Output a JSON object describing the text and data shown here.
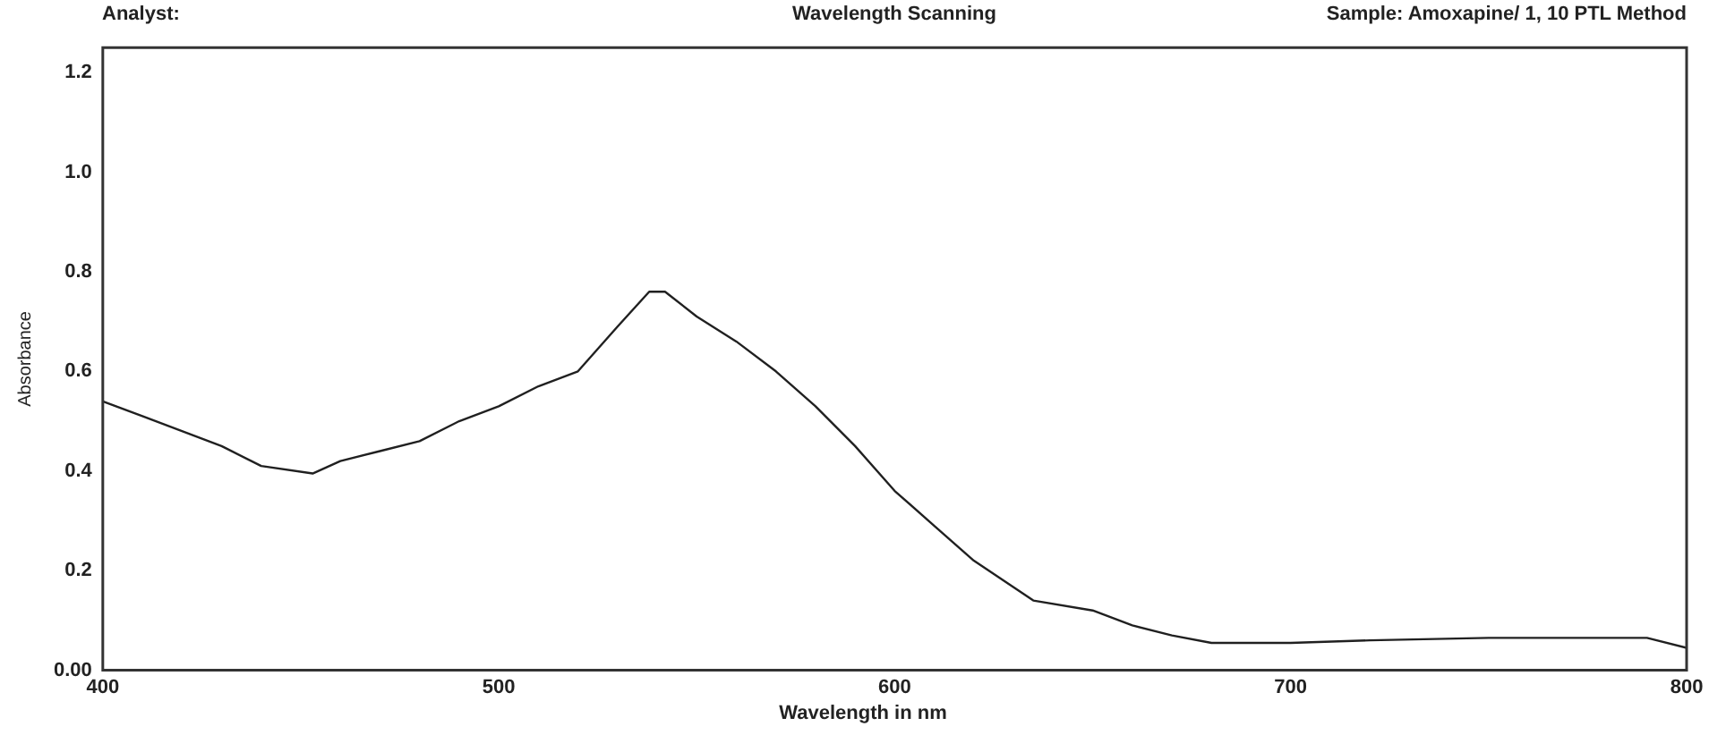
{
  "chart_data": {
    "type": "line",
    "title": "Wavelength Scanning",
    "xlabel": "Wavelength in nm",
    "ylabel": "Absorbance",
    "annotations": [
      "Analyst:",
      "Sample: Amoxapine/ 1, 10 PTL Method"
    ],
    "x": [
      400,
      410,
      420,
      430,
      440,
      453,
      460,
      470,
      480,
      490,
      500,
      510,
      520,
      530,
      538,
      542,
      550,
      560,
      570,
      580,
      590,
      600,
      610,
      620,
      635,
      650,
      660,
      670,
      680,
      700,
      720,
      750,
      790,
      800
    ],
    "series": [
      {
        "color": "#202020",
        "values": [
          0.54,
          0.51,
          0.48,
          0.45,
          0.41,
          0.395,
          0.42,
          0.44,
          0.46,
          0.5,
          0.53,
          0.57,
          0.6,
          0.69,
          0.76,
          0.76,
          0.71,
          0.66,
          0.6,
          0.53,
          0.45,
          0.36,
          0.29,
          0.22,
          0.14,
          0.12,
          0.09,
          0.07,
          0.055,
          0.055,
          0.06,
          0.065,
          0.065,
          0.045
        ]
      }
    ],
    "xlim": [
      400,
      800
    ],
    "xticks": [
      400,
      500,
      600,
      700,
      800
    ],
    "ylim": [
      0,
      1.25
    ],
    "yticks": [
      {
        "value": 0,
        "label": "0.00"
      },
      0.2,
      0.4,
      0.6,
      0.8,
      {
        "value": 1.0,
        "label": "1.0"
      },
      1.2
    ],
    "grid": false,
    "legend": false,
    "marker": "none",
    "line_style": "solid"
  }
}
